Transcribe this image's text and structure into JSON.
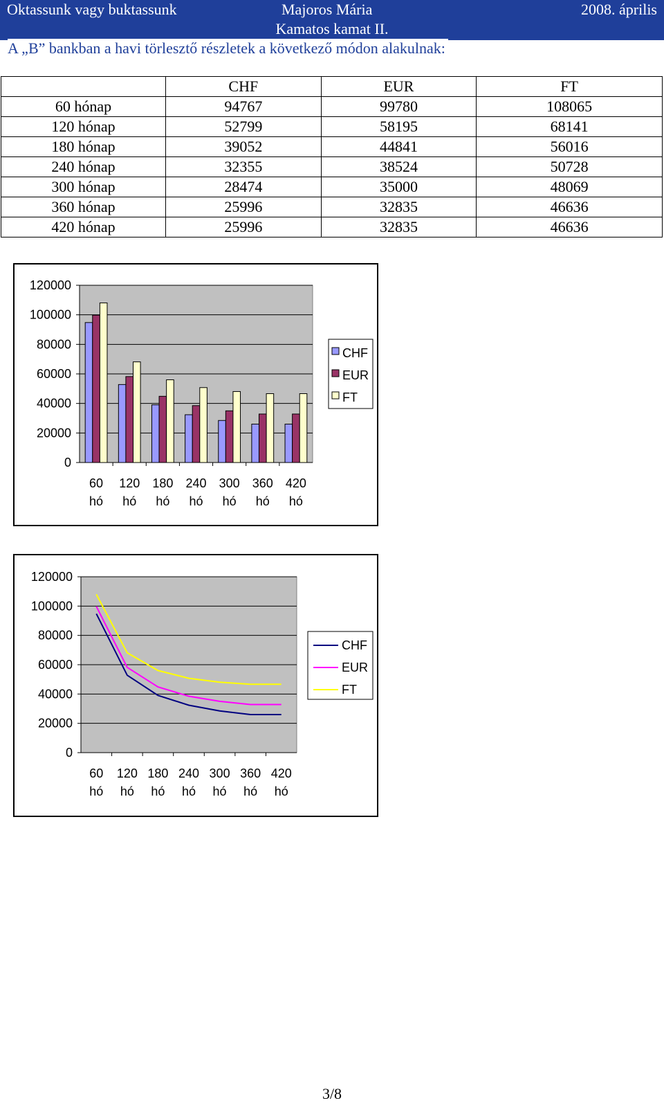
{
  "header": {
    "left": "Oktassunk vagy buktassunk",
    "middle": "Majoros Mária",
    "right": "2008. április",
    "subtitle": "Kamatos kamat II."
  },
  "intro": "A „B” bankban a havi törlesztő részletek a következő módon alakulnak:",
  "table": {
    "columns": [
      "CHF",
      "EUR",
      "FT"
    ],
    "rows": [
      {
        "label": "60 hónap",
        "values": [
          "94767",
          "99780",
          "108065"
        ]
      },
      {
        "label": "120 hónap",
        "values": [
          "52799",
          "58195",
          "68141"
        ]
      },
      {
        "label": "180 hónap",
        "values": [
          "39052",
          "44841",
          "56016"
        ]
      },
      {
        "label": "240 hónap",
        "values": [
          "32355",
          "38524",
          "50728"
        ]
      },
      {
        "label": "300 hónap",
        "values": [
          "28474",
          "35000",
          "48069"
        ]
      },
      {
        "label": "360 hónap",
        "values": [
          "25996",
          "32835",
          "46636"
        ]
      },
      {
        "label": "420 hónap",
        "values": [
          "25996",
          "32835",
          "46636"
        ]
      }
    ]
  },
  "chart_data": [
    {
      "type": "bar",
      "categories": [
        [
          "60",
          "hó"
        ],
        [
          "120",
          "hó"
        ],
        [
          "180",
          "hó"
        ],
        [
          "240",
          "hó"
        ],
        [
          "300",
          "hó"
        ],
        [
          "360",
          "hó"
        ],
        [
          "420",
          "hó"
        ]
      ],
      "series": [
        {
          "name": "CHF",
          "values": [
            94767,
            52799,
            39052,
            32355,
            28474,
            25996,
            25996
          ],
          "color": "#9999ff"
        },
        {
          "name": "EUR",
          "values": [
            99780,
            58195,
            44841,
            38524,
            35000,
            32835,
            32835
          ],
          "color": "#993366"
        },
        {
          "name": "FT",
          "values": [
            108065,
            68141,
            56016,
            50728,
            48069,
            46636,
            46636
          ],
          "color": "#ffffcc"
        }
      ],
      "ylim": [
        0,
        120000
      ],
      "yticks": [
        "0",
        "20000",
        "40000",
        "60000",
        "80000",
        "100000",
        "120000"
      ],
      "grid": true,
      "legend": "right",
      "plot_bg": "#c0c0c0"
    },
    {
      "type": "line",
      "categories": [
        [
          "60",
          "hó"
        ],
        [
          "120",
          "hó"
        ],
        [
          "180",
          "hó"
        ],
        [
          "240",
          "hó"
        ],
        [
          "300",
          "hó"
        ],
        [
          "360",
          "hó"
        ],
        [
          "420",
          "hó"
        ]
      ],
      "series": [
        {
          "name": "CHF",
          "values": [
            94767,
            52799,
            39052,
            32355,
            28474,
            25996,
            25996
          ],
          "color": "#000080"
        },
        {
          "name": "EUR",
          "values": [
            99780,
            58195,
            44841,
            38524,
            35000,
            32835,
            32835
          ],
          "color": "#ff00ff"
        },
        {
          "name": "FT",
          "values": [
            108065,
            68141,
            56016,
            50728,
            48069,
            46636,
            46636
          ],
          "color": "#ffff00"
        }
      ],
      "ylim": [
        0,
        120000
      ],
      "yticks": [
        "0",
        "20000",
        "40000",
        "60000",
        "80000",
        "100000",
        "120000"
      ],
      "grid": true,
      "legend": "right",
      "plot_bg": "#c0c0c0"
    }
  ],
  "footer": {
    "page": "3/8"
  }
}
